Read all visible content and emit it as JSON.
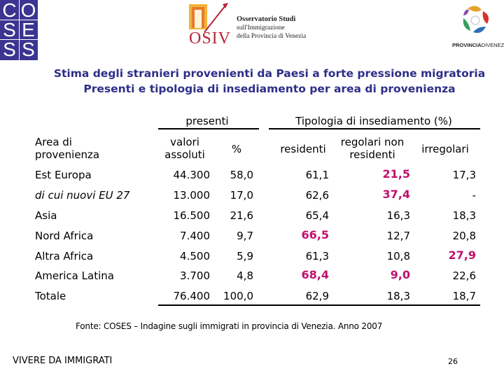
{
  "logos": {
    "coses_letters": [
      "C",
      "O",
      "S",
      "E",
      "S",
      "S"
    ],
    "osiv_word": "OSIV",
    "osiv_lines": [
      "Osservatorio Studi",
      "sull'Immigrazione",
      "della Provincia di Venezia"
    ],
    "provincia_bold": "PROVINCIA",
    "provincia_light": "DIVENEZIA",
    "colors": {
      "coses": "#3b3591",
      "osiv": "#b8243a"
    }
  },
  "titles": {
    "line1": "Stima degli stranieri provenienti da Paesi a forte pressione migratoria",
    "line2": "Presenti e tipologia di insediamento per area di provenienza"
  },
  "table": {
    "group_presenti": "presenti",
    "group_tipologia": "Tipologia di insediamento (%)",
    "col_area": "Area di provenienza",
    "col_valori": "valori assoluti",
    "col_pct": "%",
    "col_residenti": "residenti",
    "col_regolari": "regolari non residenti",
    "col_irregolari": "irregolari",
    "rows": [
      {
        "area": "Est Europa",
        "valori": "44.300",
        "pct": "58,0",
        "residenti": "61,1",
        "regolari": "21,5",
        "irregolari": "17,3"
      },
      {
        "area": "di cui nuovi EU 27",
        "valori": "13.000",
        "pct": "17,0",
        "residenti": "62,6",
        "regolari": "37,4",
        "irregolari": "-"
      },
      {
        "area": "Asia",
        "valori": "16.500",
        "pct": "21,6",
        "residenti": "65,4",
        "regolari": "16,3",
        "irregolari": "18,3"
      },
      {
        "area": "Nord Africa",
        "valori": "7.400",
        "pct": "9,7",
        "residenti": "66,5",
        "regolari": "12,7",
        "irregolari": "20,8"
      },
      {
        "area": "Altra Africa",
        "valori": "4.500",
        "pct": "5,9",
        "residenti": "61,3",
        "regolari": "10,8",
        "irregolari": "27,9"
      },
      {
        "area": "America Latina",
        "valori": "3.700",
        "pct": "4,8",
        "residenti": "68,4",
        "regolari": "9,0",
        "irregolari": "22,6"
      },
      {
        "area": "Totale",
        "valori": "76.400",
        "pct": "100,0",
        "residenti": "62,9",
        "regolari": "18,3",
        "irregolari": "18,7"
      }
    ],
    "highlight_color": "#c0106e"
  },
  "source": "Fonte: COSES – Indagine sugli immigrati in provincia di Venezia. Anno 2007",
  "footer": {
    "left": "VIVERE DA IMMIGRATI",
    "page": "26"
  }
}
